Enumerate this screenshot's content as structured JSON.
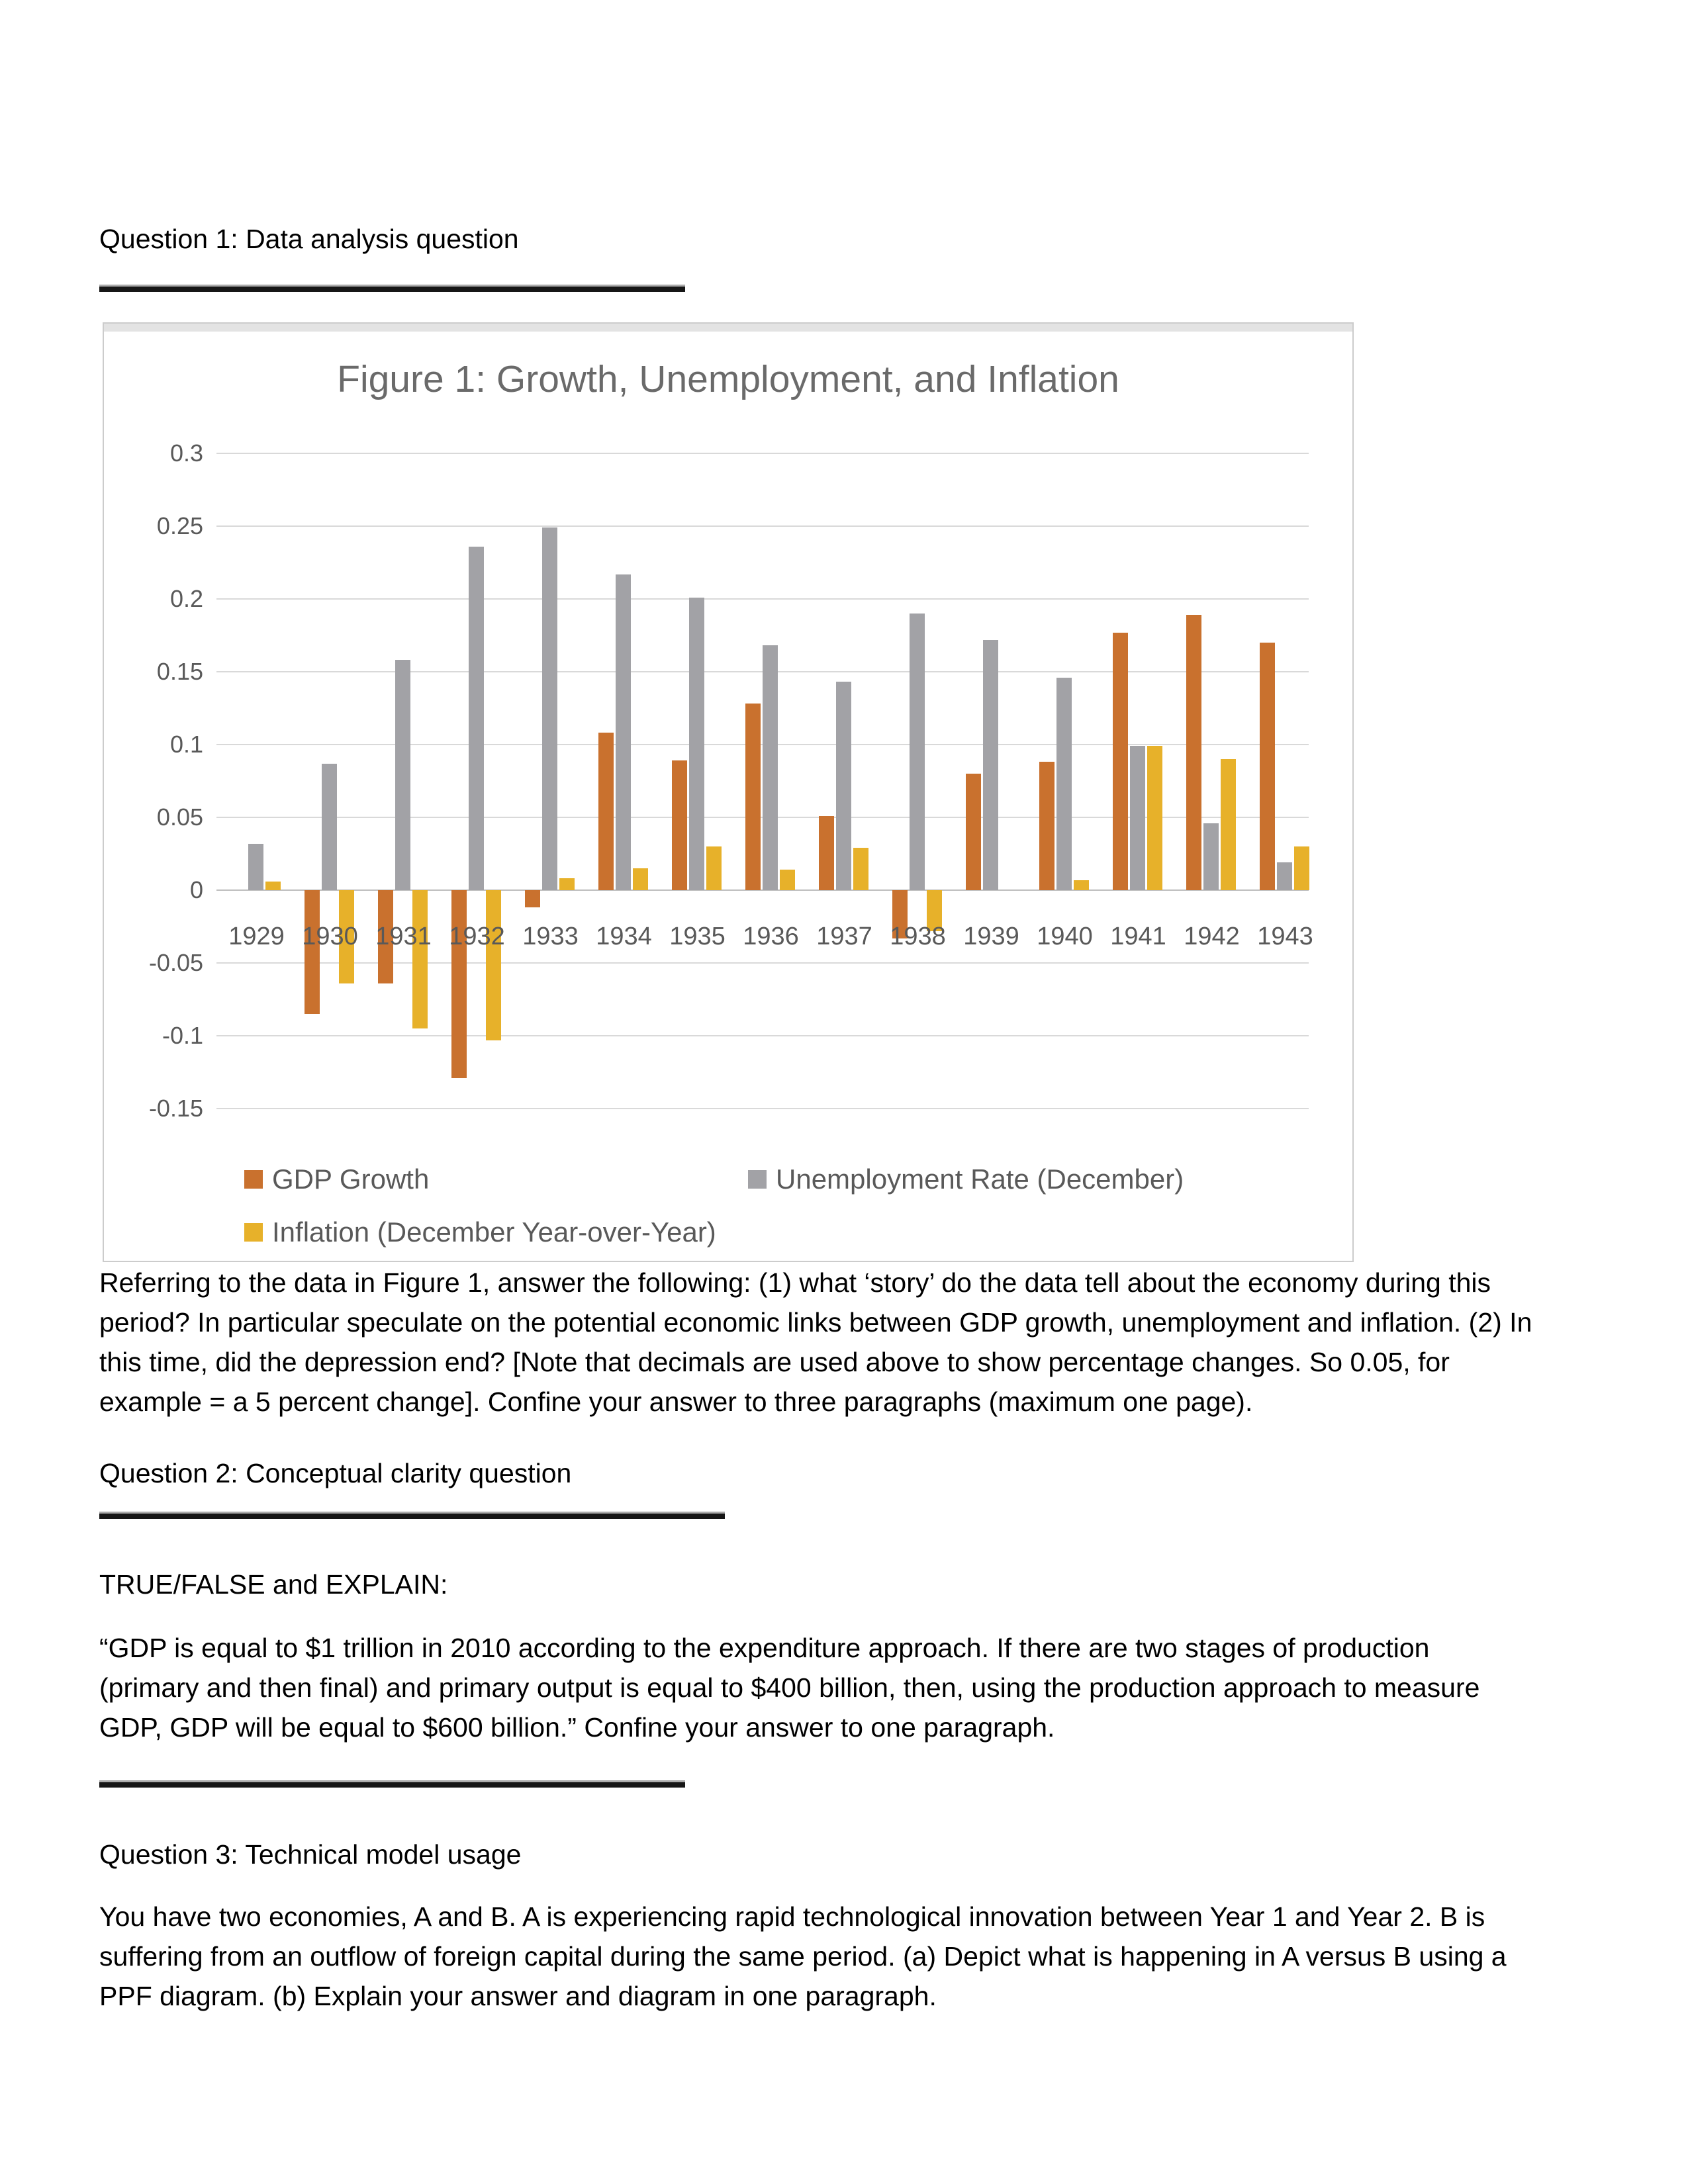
{
  "page": {
    "q1_heading": "Question 1: Data analysis question",
    "q1_paragraph_lines": [
      "Referring to the data in Figure 1, answer the following: (1) what ‘story’ do the data tell about the economy during this",
      "period? In particular speculate on the potential economic links between GDP growth, unemployment and inflation. (2) In",
      "this time, did the depression end? [Note that decimals are used above to show percentage changes.  So 0.05, for",
      "example = a 5 percent change]. Confine your answer to three paragraphs (maximum one page)."
    ],
    "q2_heading": "Question 2: Conceptual clarity question",
    "true_false_label": "TRUE/FALSE and EXPLAIN:",
    "q2_paragraph_lines": [
      "“GDP is equal to $1 trillion in 2010 according to the expenditure approach.  If there are two stages of production",
      "(primary and then final) and primary output is equal to $400 billion, then, using the production approach to measure",
      "GDP, GDP will be equal to $600 billion.”  Confine your answer to one paragraph."
    ],
    "q3_heading": "Question 3: Technical model usage",
    "q3_paragraph_lines": [
      "You have two economies, A and B.  A is experiencing rapid technological innovation between Year 1 and Year 2.  B is",
      "suffering from an outflow of foreign capital during the same period.  (a) Depict what is happening in A versus B using a",
      "PPF diagram.  (b) Explain your answer and diagram in one paragraph."
    ]
  },
  "chart_data": {
    "type": "bar",
    "title": "Figure 1: Growth, Unemployment, and Inflation",
    "xlabel": "",
    "ylabel": "",
    "categories": [
      "1929",
      "1930",
      "1931",
      "1932",
      "1933",
      "1934",
      "1935",
      "1936",
      "1937",
      "1938",
      "1939",
      "1940",
      "1941",
      "1942",
      "1943"
    ],
    "series": [
      {
        "key": "gdp",
        "name": "GDP Growth",
        "color": "#C9712E",
        "values": [
          null,
          -0.085,
          -0.064,
          -0.129,
          -0.012,
          0.108,
          0.089,
          0.128,
          0.051,
          -0.033,
          0.08,
          0.088,
          0.177,
          0.189,
          0.17
        ]
      },
      {
        "key": "unemployment",
        "name": "Unemployment Rate (December)",
        "color": "#A2A2A6",
        "values": [
          0.032,
          0.087,
          0.158,
          0.236,
          0.249,
          0.217,
          0.201,
          0.168,
          0.143,
          0.19,
          0.172,
          0.146,
          0.099,
          0.046,
          0.019
        ]
      },
      {
        "key": "inflation",
        "name": "Inflation (December Year-over-Year)",
        "color": "#E7B12A",
        "values": [
          0.006,
          -0.064,
          -0.095,
          -0.103,
          0.008,
          0.015,
          0.03,
          0.014,
          0.029,
          -0.028,
          0.0,
          0.007,
          0.099,
          0.09,
          0.03
        ]
      }
    ],
    "ylim": [
      -0.15,
      0.3
    ],
    "ytick_step": 0.05,
    "ytick_labels": [
      "0.3",
      "0.25",
      "0.2",
      "0.15",
      "0.1",
      "0.05",
      "0",
      "-0.05",
      "-0.1",
      "-0.15"
    ],
    "grid": true,
    "legend_position": "bottom"
  }
}
